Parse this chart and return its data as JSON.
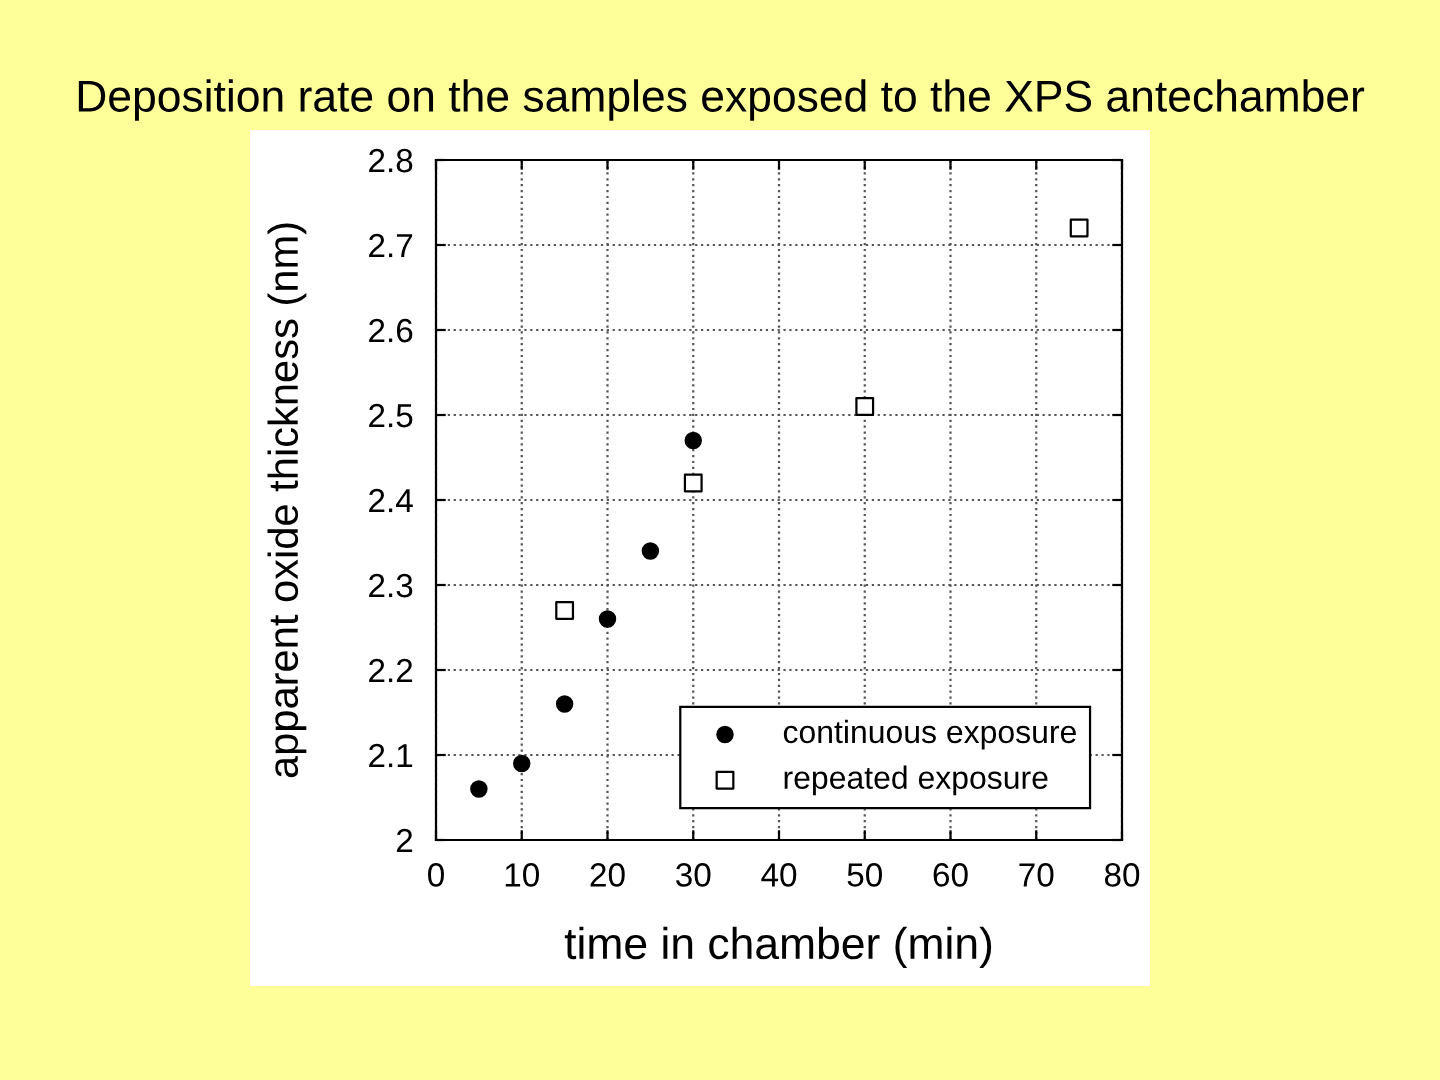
{
  "chart_data": {
    "type": "scatter",
    "title": "Deposition rate on the samples exposed to the XPS antechamber",
    "xlabel": "time in chamber (min)",
    "ylabel": "apparent oxide thickness (nm)",
    "xlim": [
      0,
      80
    ],
    "xticks": [
      0,
      10,
      20,
      30,
      40,
      50,
      60,
      70,
      80
    ],
    "ylim": [
      2,
      2.8
    ],
    "yticks": [
      2,
      2.1,
      2.2,
      2.3,
      2.4,
      2.5,
      2.6,
      2.7,
      2.8
    ],
    "grid": true,
    "legend": "bottom right",
    "series": [
      {
        "name": "continuous exposure",
        "color": "#000000",
        "marker": "circle",
        "x": [
          5,
          10,
          15,
          20,
          25,
          30
        ],
        "values": [
          2.06,
          2.09,
          2.16,
          2.26,
          2.34,
          2.47
        ]
      },
      {
        "name": "repeated exposure",
        "color": "#000000",
        "marker": "square",
        "x": [
          15,
          30,
          50,
          75
        ],
        "values": [
          2.27,
          2.42,
          2.51,
          2.72
        ]
      }
    ]
  }
}
